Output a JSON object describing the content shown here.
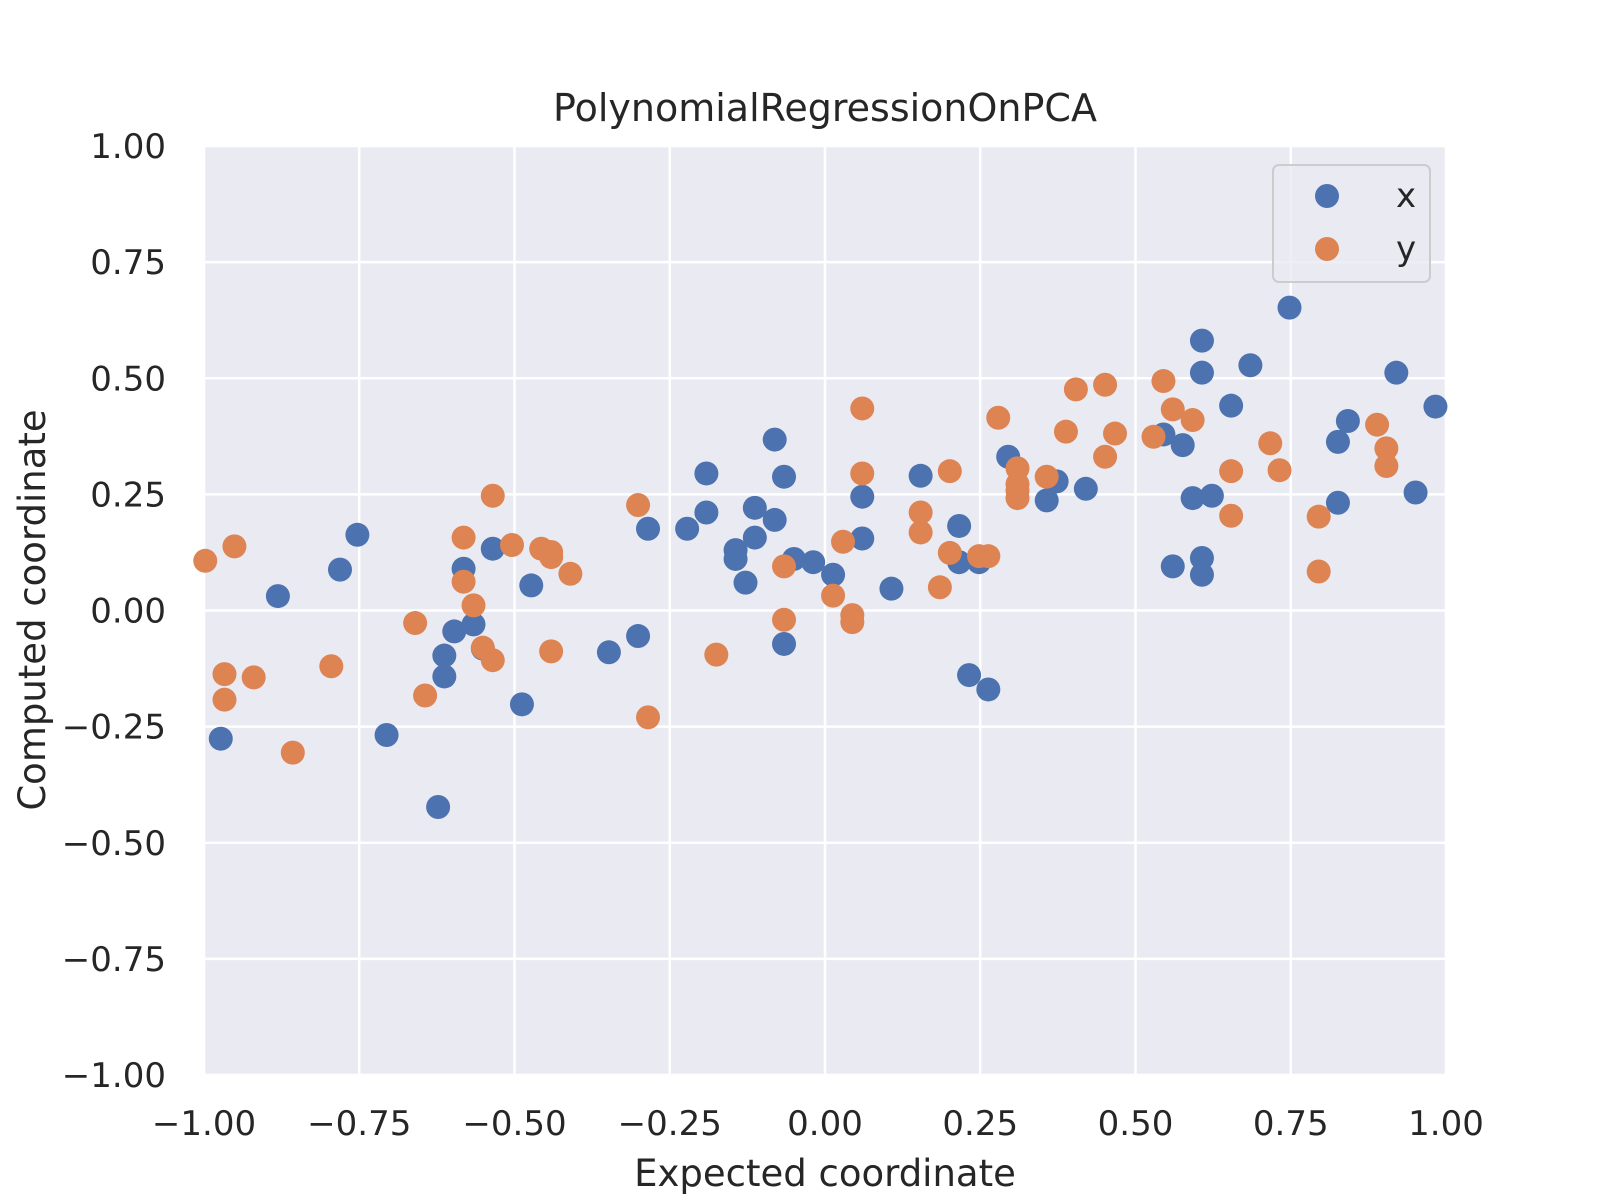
{
  "chart_data": {
    "type": "scatter",
    "title": "PolynomialRegressionOnPCA",
    "xlabel": "Expected coordinate",
    "ylabel": "Computed coordinate",
    "xlim": [
      -1.0,
      1.0
    ],
    "ylim": [
      -1.0,
      1.0
    ],
    "xticks": [
      "−1.00",
      "−0.75",
      "−0.50",
      "−0.25",
      "0.00",
      "0.25",
      "0.50",
      "0.75",
      "1.00"
    ],
    "yticks": [
      "−1.00",
      "−0.75",
      "−0.50",
      "−0.25",
      "0.00",
      "0.25",
      "0.50",
      "0.75",
      "1.00"
    ],
    "grid": true,
    "legend_position": "top-right",
    "series": [
      {
        "name": "x",
        "color": "#4c72b0",
        "points": [
          [
            -0.973,
            -0.276
          ],
          [
            -0.881,
            0.031
          ],
          [
            -0.781,
            0.088
          ],
          [
            -0.753,
            0.163
          ],
          [
            -0.706,
            -0.268
          ],
          [
            -0.623,
            -0.423
          ],
          [
            -0.613,
            -0.097
          ],
          [
            -0.613,
            -0.142
          ],
          [
            -0.597,
            -0.045
          ],
          [
            -0.582,
            0.09
          ],
          [
            -0.566,
            -0.03
          ],
          [
            -0.551,
            -0.082
          ],
          [
            -0.535,
            0.133
          ],
          [
            -0.488,
            -0.202
          ],
          [
            -0.473,
            0.054
          ],
          [
            -0.348,
            -0.09
          ],
          [
            -0.301,
            -0.055
          ],
          [
            -0.285,
            0.176
          ],
          [
            -0.222,
            0.176
          ],
          [
            -0.191,
            0.295
          ],
          [
            -0.191,
            0.211
          ],
          [
            -0.144,
            0.13
          ],
          [
            -0.144,
            0.111
          ],
          [
            -0.128,
            0.06
          ],
          [
            -0.113,
            0.221
          ],
          [
            -0.113,
            0.157
          ],
          [
            -0.081,
            0.368
          ],
          [
            -0.081,
            0.195
          ],
          [
            -0.066,
            0.288
          ],
          [
            -0.066,
            -0.072
          ],
          [
            -0.05,
            0.111
          ],
          [
            -0.019,
            0.104
          ],
          [
            0.013,
            0.077
          ],
          [
            0.06,
            0.245
          ],
          [
            0.06,
            0.155
          ],
          [
            0.107,
            0.047
          ],
          [
            0.154,
            0.29
          ],
          [
            0.216,
            0.182
          ],
          [
            0.216,
            0.104
          ],
          [
            0.232,
            -0.139
          ],
          [
            0.248,
            0.104
          ],
          [
            0.263,
            -0.17
          ],
          [
            0.295,
            0.331
          ],
          [
            0.357,
            0.237
          ],
          [
            0.373,
            0.278
          ],
          [
            0.42,
            0.262
          ],
          [
            0.545,
            0.379
          ],
          [
            0.56,
            0.095
          ],
          [
            0.576,
            0.356
          ],
          [
            0.592,
            0.242
          ],
          [
            0.607,
            0.581
          ],
          [
            0.607,
            0.512
          ],
          [
            0.607,
            0.113
          ],
          [
            0.607,
            0.077
          ],
          [
            0.623,
            0.247
          ],
          [
            0.654,
            0.441
          ],
          [
            0.685,
            0.528
          ],
          [
            0.748,
            0.652
          ],
          [
            0.826,
            0.363
          ],
          [
            0.826,
            0.232
          ],
          [
            0.842,
            0.408
          ],
          [
            0.92,
            0.512
          ],
          [
            0.951,
            0.254
          ],
          [
            0.983,
            0.439
          ]
        ]
      },
      {
        "name": "y",
        "color": "#dd8452",
        "points": [
          [
            -0.998,
            0.107
          ],
          [
            -0.967,
            -0.137
          ],
          [
            -0.967,
            -0.192
          ],
          [
            -0.951,
            0.138
          ],
          [
            -0.92,
            -0.144
          ],
          [
            -0.857,
            -0.306
          ],
          [
            -0.795,
            -0.12
          ],
          [
            -0.66,
            -0.027
          ],
          [
            -0.644,
            -0.183
          ],
          [
            -0.582,
            0.157
          ],
          [
            -0.582,
            0.062
          ],
          [
            -0.566,
            0.011
          ],
          [
            -0.551,
            -0.08
          ],
          [
            -0.535,
            0.247
          ],
          [
            -0.535,
            -0.107
          ],
          [
            -0.504,
            0.141
          ],
          [
            -0.457,
            0.133
          ],
          [
            -0.441,
            0.126
          ],
          [
            -0.441,
            0.115
          ],
          [
            -0.441,
            -0.088
          ],
          [
            -0.41,
            0.079
          ],
          [
            -0.301,
            0.227
          ],
          [
            -0.285,
            -0.23
          ],
          [
            -0.175,
            -0.095
          ],
          [
            -0.066,
            0.095
          ],
          [
            -0.066,
            -0.02
          ],
          [
            0.013,
            0.032
          ],
          [
            0.029,
            0.148
          ],
          [
            0.044,
            -0.01
          ],
          [
            0.044,
            -0.025
          ],
          [
            0.06,
            0.435
          ],
          [
            0.06,
            0.295
          ],
          [
            0.154,
            0.211
          ],
          [
            0.154,
            0.168
          ],
          [
            0.185,
            0.05
          ],
          [
            0.201,
            0.3
          ],
          [
            0.201,
            0.124
          ],
          [
            0.248,
            0.117
          ],
          [
            0.263,
            0.117
          ],
          [
            0.279,
            0.415
          ],
          [
            0.31,
            0.306
          ],
          [
            0.31,
            0.272
          ],
          [
            0.31,
            0.258
          ],
          [
            0.31,
            0.242
          ],
          [
            0.357,
            0.288
          ],
          [
            0.388,
            0.385
          ],
          [
            0.404,
            0.476
          ],
          [
            0.451,
            0.486
          ],
          [
            0.451,
            0.331
          ],
          [
            0.467,
            0.381
          ],
          [
            0.529,
            0.374
          ],
          [
            0.545,
            0.494
          ],
          [
            0.56,
            0.433
          ],
          [
            0.592,
            0.41
          ],
          [
            0.654,
            0.3
          ],
          [
            0.654,
            0.204
          ],
          [
            0.717,
            0.36
          ],
          [
            0.732,
            0.302
          ],
          [
            0.795,
            0.202
          ],
          [
            0.795,
            0.084
          ],
          [
            0.889,
            0.4
          ],
          [
            0.904,
            0.349
          ],
          [
            0.904,
            0.311
          ]
        ]
      }
    ]
  }
}
